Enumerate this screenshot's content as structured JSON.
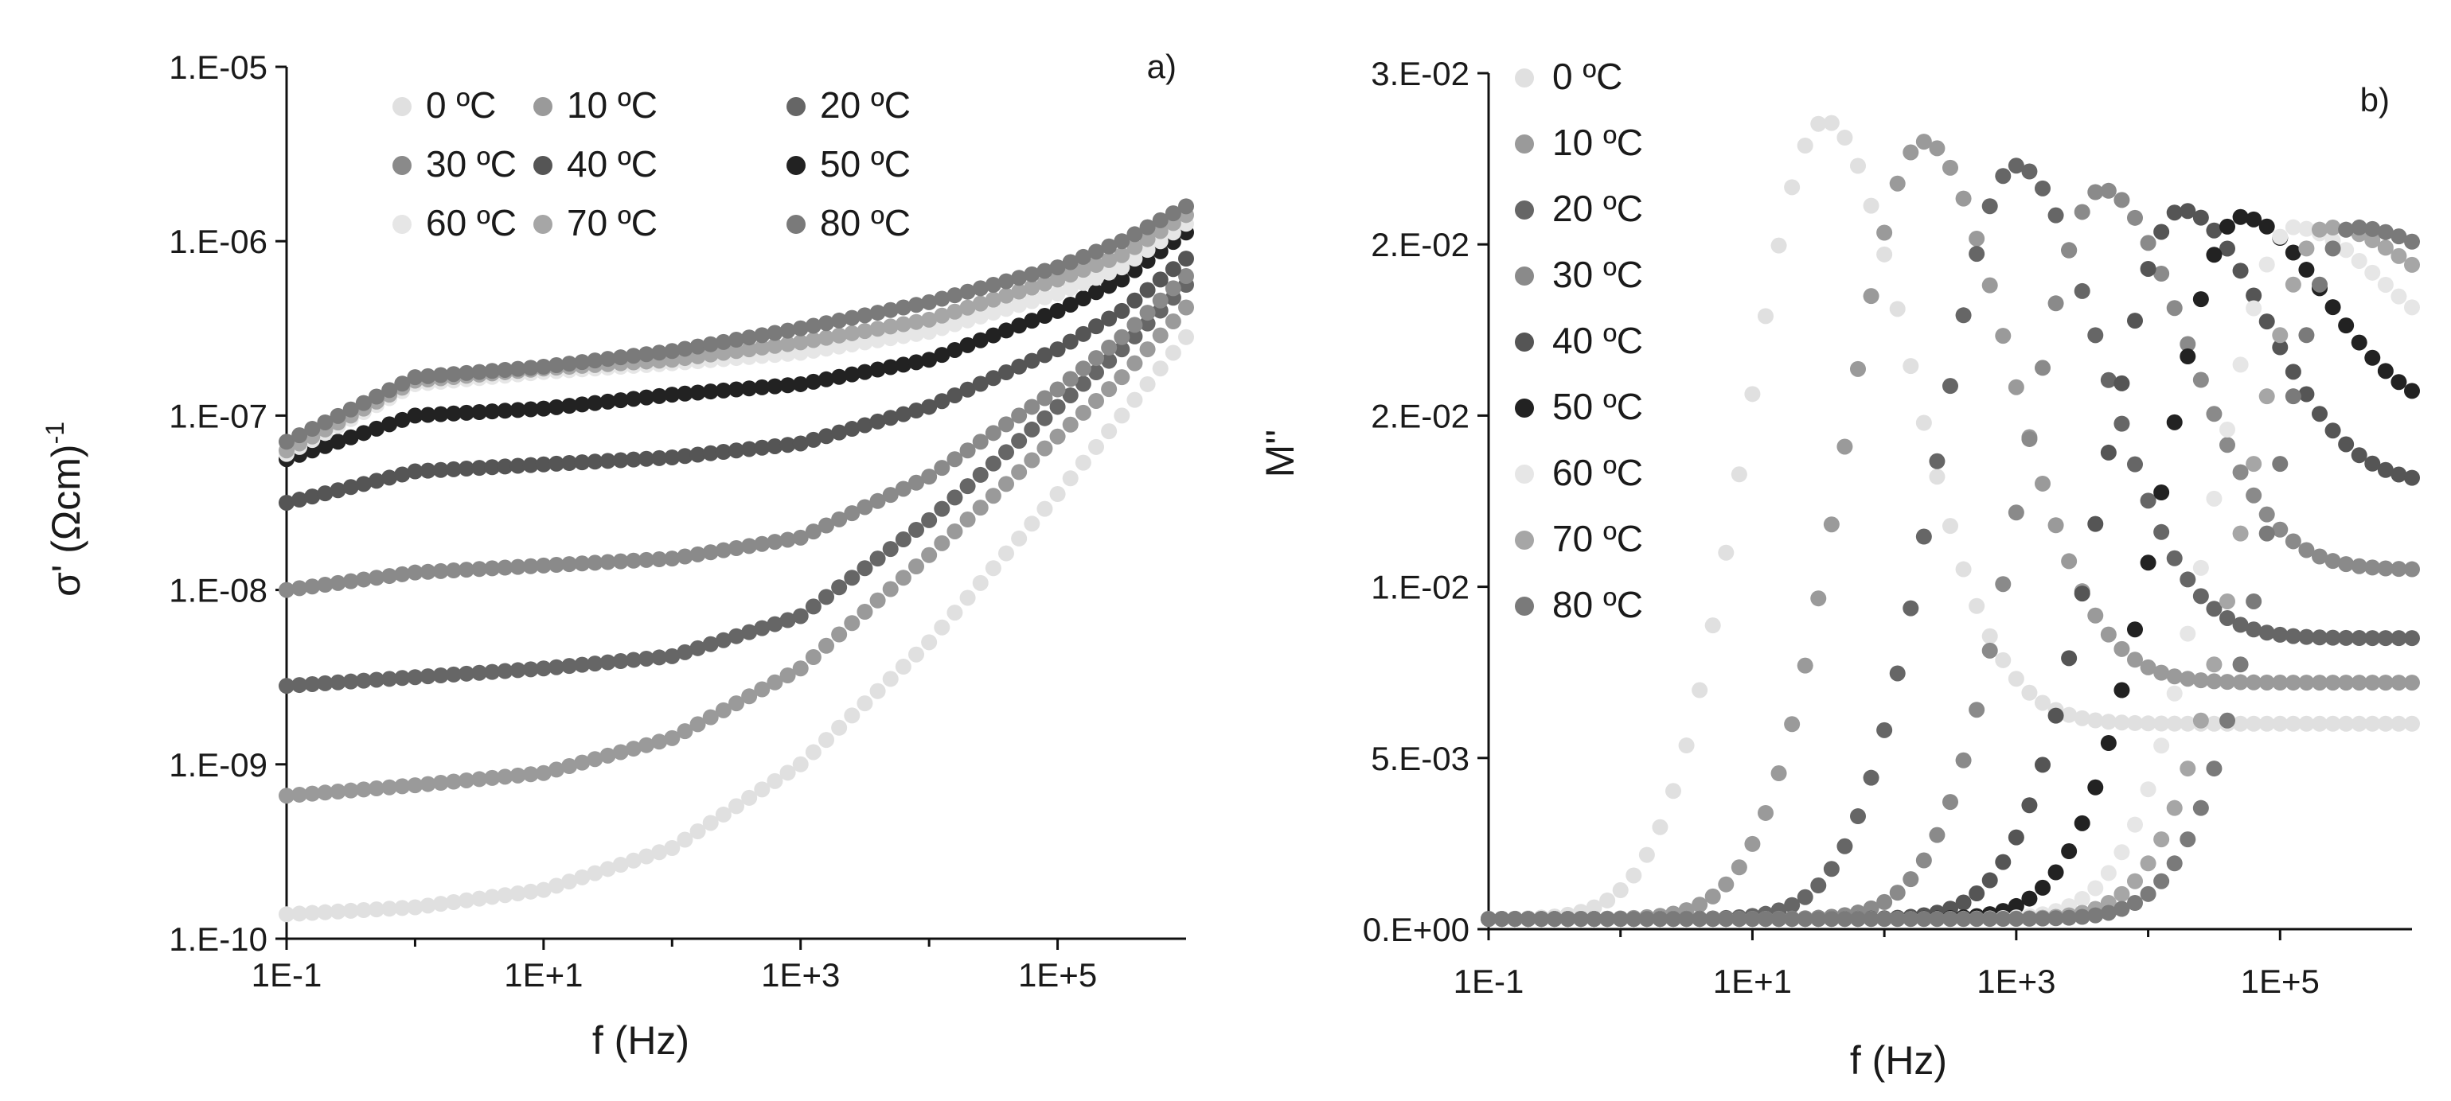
{
  "chart_data": [
    {
      "type": "scatter",
      "panel_label": "a)",
      "title": "",
      "xlabel": "f (Hz)",
      "ylabel_main": "σ' (Ωcm)",
      "ylabel_sup": "-1",
      "xscale": "log",
      "yscale": "log",
      "xlim": [
        0.1,
        1000000
      ],
      "ylim": [
        1e-10,
        1e-05
      ],
      "x_ticks": [
        0.1,
        10,
        1000,
        100000
      ],
      "x_tick_labels": [
        "1E-1",
        "1E+1",
        "1E+3",
        "1E+5"
      ],
      "y_ticks": [
        1e-10,
        1e-09,
        1e-08,
        1e-07,
        1e-06,
        1e-05
      ],
      "y_tick_labels": [
        "1.E-10",
        "1.E-09",
        "1.E-08",
        "1.E-07",
        "1.E-06",
        "1.E-05"
      ],
      "legend_position": "top",
      "series": [
        {
          "name": "0 ºC",
          "color": "#e0e0e0",
          "log_f": [
            -1,
            0,
            1,
            2,
            3,
            4,
            5,
            5.5,
            6.0
          ],
          "log_sigma": [
            -9.86,
            -9.82,
            -9.72,
            -9.48,
            -9.0,
            -8.3,
            -7.45,
            -7.0,
            -6.55
          ]
        },
        {
          "name": "10 ºC",
          "color": "#9a9a9a",
          "log_f": [
            -1,
            0,
            1,
            2,
            3,
            4,
            5,
            5.5,
            6.0
          ],
          "log_sigma": [
            -9.18,
            -9.12,
            -9.05,
            -8.85,
            -8.45,
            -7.8,
            -7.12,
            -6.78,
            -6.38
          ]
        },
        {
          "name": "20 ºC",
          "color": "#666666",
          "log_f": [
            -1,
            0,
            1,
            2,
            3,
            4,
            5,
            5.5,
            6.0
          ],
          "log_sigma": [
            -8.55,
            -8.5,
            -8.45,
            -8.38,
            -8.15,
            -7.6,
            -6.95,
            -6.62,
            -6.25
          ]
        },
        {
          "name": "30 ºC",
          "color": "#8a8a8a",
          "log_f": [
            -1,
            0,
            1,
            2,
            3,
            4,
            5,
            5.5,
            6.0
          ],
          "log_sigma": [
            -8.0,
            -7.9,
            -7.86,
            -7.82,
            -7.7,
            -7.35,
            -6.85,
            -6.55,
            -6.2
          ]
        },
        {
          "name": "40 ºC",
          "color": "#555555",
          "log_f": [
            -1,
            0,
            1,
            2,
            3,
            4,
            5,
            5.5,
            6.0
          ],
          "log_sigma": [
            -7.5,
            -7.32,
            -7.28,
            -7.24,
            -7.16,
            -6.95,
            -6.62,
            -6.4,
            -6.1
          ]
        },
        {
          "name": "50 ºC",
          "color": "#222222",
          "log_f": [
            -1,
            0,
            1,
            2,
            3,
            4,
            5,
            5.5,
            6.0
          ],
          "log_sigma": [
            -7.25,
            -7.0,
            -6.96,
            -6.88,
            -6.82,
            -6.68,
            -6.4,
            -6.22,
            -5.95
          ]
        },
        {
          "name": "60 ºC",
          "color": "#e6e6e6",
          "log_f": [
            -1,
            0,
            1,
            2,
            3,
            4,
            5,
            5.5,
            6.0
          ],
          "log_sigma": [
            -7.22,
            -6.82,
            -6.75,
            -6.7,
            -6.64,
            -6.52,
            -6.3,
            -6.15,
            -5.9
          ]
        },
        {
          "name": "70 ºC",
          "color": "#a6a6a6",
          "log_f": [
            -1,
            0,
            1,
            2,
            3,
            4,
            5,
            5.5,
            6.0
          ],
          "log_sigma": [
            -7.2,
            -6.8,
            -6.73,
            -6.68,
            -6.58,
            -6.45,
            -6.22,
            -6.08,
            -5.85
          ]
        },
        {
          "name": "80 ºC",
          "color": "#7a7a7a",
          "log_f": [
            -1,
            0,
            1,
            2,
            3,
            4,
            5,
            5.5,
            6.0
          ],
          "log_sigma": [
            -7.15,
            -6.78,
            -6.72,
            -6.63,
            -6.5,
            -6.35,
            -6.15,
            -6.0,
            -5.8
          ]
        }
      ]
    },
    {
      "type": "scatter",
      "panel_label": "b)",
      "title": "",
      "xlabel": "f (Hz)",
      "ylabel": "M''",
      "xscale": "log",
      "yscale": "linear",
      "xlim": [
        0.1,
        1000000
      ],
      "ylim": [
        0,
        0.025
      ],
      "x_ticks": [
        0.1,
        10,
        1000,
        100000
      ],
      "x_tick_labels": [
        "1E-1",
        "1E+1",
        "1E+3",
        "1E+5"
      ],
      "y_ticks": [
        0,
        0.005,
        0.01,
        0.015,
        0.02,
        0.025
      ],
      "y_tick_labels": [
        "0.E+00",
        "5.E-03",
        "1.E-02",
        "2.E-02",
        "2.E-02",
        "3.E-02"
      ],
      "legend_position": "left",
      "series": [
        {
          "name": "0 ºC",
          "color": "#e0e0e0",
          "peak_log_f": 1.55,
          "peak_M": 0.0236,
          "high_f_M": 0.006
        },
        {
          "name": "10 ºC",
          "color": "#9a9a9a",
          "peak_log_f": 2.3,
          "peak_M": 0.023,
          "high_f_M": 0.0072
        },
        {
          "name": "20 ºC",
          "color": "#666666",
          "peak_log_f": 3.0,
          "peak_M": 0.0223,
          "high_f_M": 0.0085
        },
        {
          "name": "30 ºC",
          "color": "#8a8a8a",
          "peak_log_f": 3.65,
          "peak_M": 0.0216,
          "high_f_M": 0.0105
        },
        {
          "name": "40 ºC",
          "color": "#555555",
          "peak_log_f": 4.25,
          "peak_M": 0.021,
          "high_f_M": 0.013
        },
        {
          "name": "50 ºC",
          "color": "#222222",
          "peak_log_f": 4.7,
          "peak_M": 0.0208,
          "high_f_M": 0.015
        },
        {
          "name": "60 ºC",
          "color": "#e6e6e6",
          "peak_log_f": 5.1,
          "peak_M": 0.0205,
          "high_f_M": 0.0168
        },
        {
          "name": "70 ºC",
          "color": "#a6a6a6",
          "peak_log_f": 5.35,
          "peak_M": 0.0205,
          "high_f_M": 0.0178
        },
        {
          "name": "80 ºC",
          "color": "#7a7a7a",
          "peak_log_f": 5.55,
          "peak_M": 0.0205,
          "high_f_M": 0.0186
        }
      ]
    }
  ]
}
